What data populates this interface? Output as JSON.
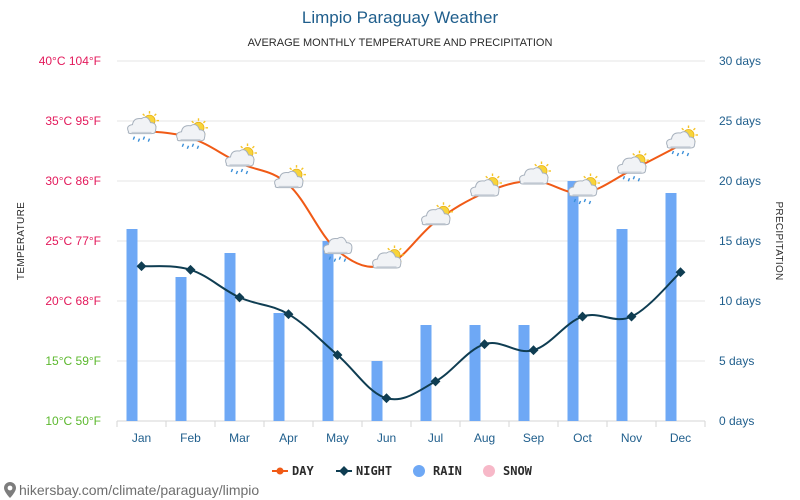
{
  "chart_data": {
    "type": "line",
    "title": "Limpio Paraguay Weather",
    "subtitle": "AVERAGE MONTHLY TEMPERATURE AND PRECIPITATION",
    "ylabel_left": "TEMPERATURE",
    "ylabel_right": "PRECIPITATION",
    "categories": [
      "Jan",
      "Feb",
      "Mar",
      "Apr",
      "May",
      "Jun",
      "Jul",
      "Aug",
      "Sep",
      "Oct",
      "Nov",
      "Dec"
    ],
    "temp_axis": {
      "range": [
        10,
        40
      ],
      "ticks": [
        {
          "c": 40,
          "label": "40°C 104°F",
          "color": "#e3195b"
        },
        {
          "c": 35,
          "label": "35°C 95°F",
          "color": "#e3195b"
        },
        {
          "c": 30,
          "label": "30°C 86°F",
          "color": "#e3195b"
        },
        {
          "c": 25,
          "label": "25°C 77°F",
          "color": "#e3195b"
        },
        {
          "c": 20,
          "label": "20°C 68°F",
          "color": "#e3195b"
        },
        {
          "c": 15,
          "label": "15°C 59°F",
          "color": "#5cb82e"
        },
        {
          "c": 10,
          "label": "10°C 50°F",
          "color": "#5cb82e"
        }
      ]
    },
    "precip_axis": {
      "range": [
        0,
        30
      ],
      "ticks": [
        {
          "v": 30,
          "label": "30 days"
        },
        {
          "v": 25,
          "label": "25 days"
        },
        {
          "v": 20,
          "label": "20 days"
        },
        {
          "v": 15,
          "label": "15 days"
        },
        {
          "v": 10,
          "label": "10 days"
        },
        {
          "v": 5,
          "label": "5 days"
        },
        {
          "v": 0,
          "label": "0 days"
        }
      ]
    },
    "grid": true,
    "series": [
      {
        "name": "DAY",
        "kind": "line",
        "color": "#f05a16",
        "values": [
          34.2,
          33.6,
          31.5,
          29.7,
          24.2,
          23.0,
          26.6,
          29.0,
          30.0,
          29.0,
          30.9,
          33.0
        ]
      },
      {
        "name": "NIGHT",
        "kind": "line",
        "color": "#0f3d52",
        "values": [
          22.9,
          22.6,
          20.3,
          18.9,
          15.5,
          11.9,
          13.3,
          16.4,
          15.9,
          18.7,
          18.7,
          22.4
        ]
      },
      {
        "name": "RAIN",
        "kind": "bar",
        "color": "#6ea8f5",
        "values": [
          16,
          12,
          14,
          9,
          15,
          5,
          8,
          8,
          8,
          20,
          16,
          19
        ]
      },
      {
        "name": "SNOW",
        "kind": "bar",
        "color": "#f7b8c8",
        "values": [
          0,
          0,
          0,
          0,
          0,
          0,
          0,
          0,
          0,
          0,
          0,
          0
        ]
      }
    ],
    "weather_icons": [
      "sun-cloud-rain-icon",
      "sun-cloud-rain-icon",
      "sun-cloud-rain-icon",
      "sun-cloud-icon",
      "cloud-rain-icon",
      "sun-cloud-icon",
      "sun-cloud-icon",
      "sun-cloud-icon",
      "sun-cloud-icon",
      "sun-cloud-rain-icon",
      "sun-cloud-rain-icon",
      "sun-cloud-rain-icon"
    ],
    "legend": {
      "position": "bottom-center",
      "items": [
        "DAY",
        "NIGHT",
        "RAIN",
        "SNOW"
      ]
    }
  },
  "footer": {
    "source": "hikersbay.com/climate/paraguay/limpio"
  }
}
